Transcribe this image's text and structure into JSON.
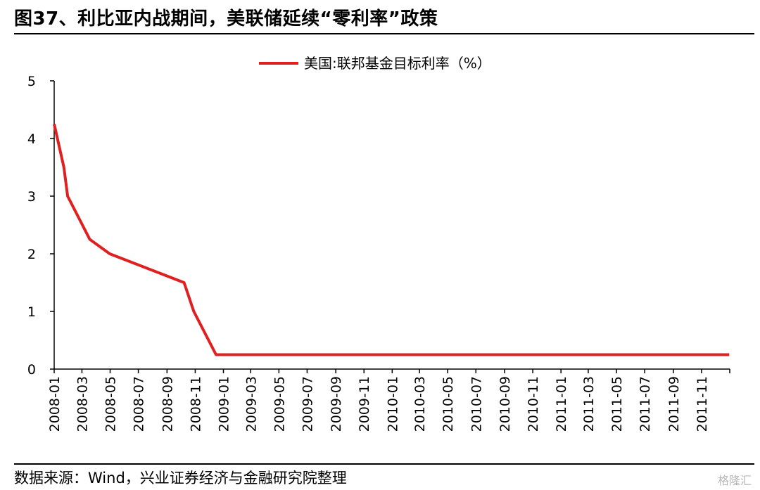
{
  "figure": {
    "title": "图37、利比亚内战期间，美联储延续“零利率”政策",
    "source": "数据来源：Wind，兴业证券经济与金融研究院整理",
    "watermark": "格隆汇"
  },
  "chart_data": {
    "type": "line",
    "title": "",
    "xlabel": "",
    "ylabel": "",
    "ylim": [
      0,
      5
    ],
    "yticks": [
      0,
      1,
      2,
      3,
      4,
      5
    ],
    "xlim": [
      "2008-01",
      "2012-01"
    ],
    "xticks": [
      "2008-01",
      "2008-03",
      "2008-05",
      "2008-07",
      "2008-09",
      "2008-11",
      "2009-01",
      "2009-03",
      "2009-05",
      "2009-07",
      "2009-09",
      "2009-11",
      "2010-01",
      "2010-03",
      "2010-05",
      "2010-07",
      "2010-09",
      "2010-11",
      "2011-01",
      "2011-03",
      "2011-05",
      "2011-07",
      "2011-09",
      "2011-11"
    ],
    "grid": false,
    "legend": "top-center",
    "series": [
      {
        "name": "美国:联邦基金目标利率（%）",
        "color": "#e02020",
        "points": [
          {
            "x": "2008-01-01",
            "y": 4.25
          },
          {
            "x": "2008-01-22",
            "y": 3.5
          },
          {
            "x": "2008-01-30",
            "y": 3.0
          },
          {
            "x": "2008-03-18",
            "y": 2.25
          },
          {
            "x": "2008-04-30",
            "y": 2.0
          },
          {
            "x": "2008-10-08",
            "y": 1.5
          },
          {
            "x": "2008-10-29",
            "y": 1.0
          },
          {
            "x": "2008-12-16",
            "y": 0.25
          },
          {
            "x": "2011-12-31",
            "y": 0.25
          }
        ]
      }
    ]
  }
}
